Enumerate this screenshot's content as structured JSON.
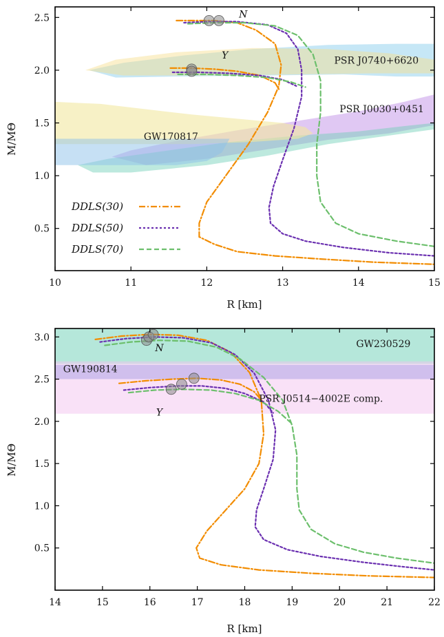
{
  "chart_data": [
    {
      "type": "line",
      "xlabel": "R [km]",
      "ylabel": "M/MΘ",
      "xlim": [
        10,
        15
      ],
      "ylim": [
        0.1,
        2.6
      ],
      "x_ticks": [
        10,
        11,
        12,
        13,
        14,
        15
      ],
      "y_ticks": [
        0.5,
        1.0,
        1.5,
        2.0,
        2.5
      ],
      "x_tick_labels": [
        "10",
        "11",
        "12",
        "13",
        "14",
        "15"
      ],
      "y_tick_labels": [
        "0.5",
        "1.0",
        "1.5",
        "2.0",
        "2.5"
      ],
      "legend": {
        "placement": "lower-left",
        "entries": [
          {
            "label": "DDLS(30)",
            "color": "#f28c00",
            "dash": "dashdot"
          },
          {
            "label": "DDLS(50)",
            "color": "#6a2fb0",
            "dash": "dotted"
          },
          {
            "label": "DDLS(70)",
            "color": "#6cbf6c",
            "dash": "dashed"
          }
        ]
      },
      "bands": [
        {
          "label": "PSR J0740+6620",
          "color": "#8ecfee",
          "opacity": 0.5,
          "polygon": [
            [
              10.45,
              2.0
            ],
            [
              10.9,
              2.07
            ],
            [
              11.7,
              2.14
            ],
            [
              12.6,
              2.2
            ],
            [
              13.6,
              2.24
            ],
            [
              14.5,
              2.25
            ],
            [
              15.0,
              2.25
            ],
            [
              15.0,
              1.94
            ],
            [
              14.5,
              1.94
            ],
            [
              13.8,
              1.96
            ],
            [
              12.8,
              1.95
            ],
            [
              11.6,
              1.94
            ],
            [
              10.8,
              1.93
            ]
          ]
        },
        {
          "label": "",
          "color": "#f6dd8c",
          "opacity": 0.45,
          "polygon": [
            [
              10.4,
              2.0
            ],
            [
              10.8,
              2.1
            ],
            [
              11.6,
              2.17
            ],
            [
              12.6,
              2.21
            ],
            [
              13.6,
              2.2
            ],
            [
              14.4,
              2.16
            ],
            [
              15.0,
              2.1
            ],
            [
              15.0,
              1.97
            ],
            [
              14.2,
              1.97
            ],
            [
              13.2,
              1.96
            ],
            [
              12.0,
              1.95
            ],
            [
              10.9,
              1.95
            ]
          ]
        },
        {
          "label": "PSR J0030+0451",
          "color": "#c69bea",
          "opacity": 0.55,
          "polygon": [
            [
              10.75,
              1.18
            ],
            [
              11.0,
              1.24
            ],
            [
              11.6,
              1.33
            ],
            [
              12.4,
              1.43
            ],
            [
              13.2,
              1.52
            ],
            [
              14.0,
              1.61
            ],
            [
              14.6,
              1.7
            ],
            [
              15.0,
              1.77
            ],
            [
              15.0,
              1.48
            ],
            [
              14.4,
              1.4
            ],
            [
              13.6,
              1.34
            ],
            [
              12.8,
              1.25
            ],
            [
              12.0,
              1.16
            ],
            [
              11.2,
              1.1
            ]
          ]
        },
        {
          "label": "",
          "color": "#6ccfb6",
          "opacity": 0.45,
          "polygon": [
            [
              10.3,
              1.1
            ],
            [
              10.7,
              1.16
            ],
            [
              11.5,
              1.24
            ],
            [
              12.3,
              1.32
            ],
            [
              13.2,
              1.38
            ],
            [
              14.0,
              1.42
            ],
            [
              14.6,
              1.47
            ],
            [
              15.0,
              1.5
            ],
            [
              15.0,
              1.44
            ],
            [
              14.4,
              1.38
            ],
            [
              13.6,
              1.3
            ],
            [
              12.8,
              1.19
            ],
            [
              12.0,
              1.1
            ],
            [
              11.0,
              1.03
            ],
            [
              10.5,
              1.03
            ]
          ]
        },
        {
          "label": "GW170817",
          "color": "#f2e8a0",
          "opacity": 0.6,
          "polygon": [
            [
              10.0,
              1.7
            ],
            [
              10.6,
              1.68
            ],
            [
              11.2,
              1.63
            ],
            [
              11.8,
              1.58
            ],
            [
              12.4,
              1.54
            ],
            [
              13.0,
              1.5
            ],
            [
              13.3,
              1.46
            ],
            [
              13.4,
              1.4
            ],
            [
              13.2,
              1.35
            ],
            [
              12.6,
              1.32
            ],
            [
              11.8,
              1.3
            ],
            [
              10.0,
              1.3
            ]
          ]
        },
        {
          "label": "",
          "color": "#8ec1ea",
          "opacity": 0.5,
          "polygon": [
            [
              10.0,
              1.35
            ],
            [
              12.3,
              1.35
            ],
            [
              12.2,
              1.22
            ],
            [
              12.0,
              1.14
            ],
            [
              11.6,
              1.1
            ],
            [
              10.0,
              1.1
            ]
          ]
        }
      ],
      "band_labels": [
        {
          "text": "PSR J0740+6620",
          "x": 13.68,
          "y": 2.06
        },
        {
          "text": "PSR J0030+0451",
          "x": 13.75,
          "y": 1.6
        },
        {
          "text": "GW170817",
          "x": 11.17,
          "y": 1.34
        }
      ],
      "branch_labels": [
        {
          "text": "N",
          "x": 12.48,
          "y": 2.5
        },
        {
          "text": "Y",
          "x": 12.24,
          "y": 2.11
        }
      ],
      "series": [
        {
          "name": "DDLS(30)",
          "color": "#f28c00",
          "dash": "dashdot",
          "x": [
            11.6,
            11.85,
            12.1,
            12.4,
            12.65,
            12.9,
            12.98,
            12.95,
            12.8,
            12.55,
            12.25,
            12.0,
            11.9,
            11.9,
            12.1,
            12.4,
            12.9,
            13.5,
            14.2,
            15.0
          ],
          "y": [
            2.47,
            2.47,
            2.47,
            2.45,
            2.38,
            2.25,
            2.05,
            1.85,
            1.6,
            1.3,
            1.0,
            0.75,
            0.55,
            0.42,
            0.35,
            0.28,
            0.24,
            0.21,
            0.18,
            0.16
          ]
        },
        {
          "name": "",
          "color": "#f28c00",
          "dash": "dashdot",
          "x": [
            11.52,
            11.8,
            12.1,
            12.4,
            12.7,
            12.9,
            12.95
          ],
          "y": [
            2.02,
            2.02,
            2.01,
            1.99,
            1.95,
            1.88,
            1.82
          ]
        },
        {
          "name": "DDLS(50)",
          "color": "#6a2fb0",
          "dash": "dotted",
          "x": [
            11.7,
            12.0,
            12.4,
            12.8,
            13.05,
            13.2,
            13.25,
            13.25,
            13.15,
            13.0,
            12.88,
            12.82,
            12.84,
            13.0,
            13.3,
            13.8,
            14.4,
            15.0
          ],
          "y": [
            2.45,
            2.46,
            2.46,
            2.43,
            2.35,
            2.2,
            2.0,
            1.75,
            1.45,
            1.15,
            0.9,
            0.7,
            0.55,
            0.45,
            0.38,
            0.32,
            0.27,
            0.24
          ]
        },
        {
          "name": "",
          "color": "#6a2fb0",
          "dash": "dotted",
          "x": [
            11.55,
            11.9,
            12.3,
            12.7,
            13.0,
            13.18
          ],
          "y": [
            1.98,
            1.98,
            1.97,
            1.95,
            1.91,
            1.85
          ]
        },
        {
          "name": "DDLS(70)",
          "color": "#6cbf6c",
          "dash": "dashed",
          "x": [
            11.75,
            12.1,
            12.5,
            12.9,
            13.2,
            13.4,
            13.5,
            13.5,
            13.45,
            13.45,
            13.5,
            13.7,
            14.0,
            14.5,
            15.0
          ],
          "y": [
            2.44,
            2.45,
            2.45,
            2.42,
            2.33,
            2.15,
            1.9,
            1.6,
            1.3,
            1.0,
            0.75,
            0.55,
            0.45,
            0.38,
            0.33
          ]
        },
        {
          "name": "",
          "color": "#6cbf6c",
          "dash": "dashed",
          "x": [
            11.62,
            12.0,
            12.4,
            12.8,
            13.1,
            13.3
          ],
          "y": [
            1.96,
            1.96,
            1.95,
            1.93,
            1.89,
            1.84
          ]
        }
      ],
      "markers": [
        {
          "x": 12.03,
          "y": 2.47
        },
        {
          "x": 12.16,
          "y": 2.47
        },
        {
          "x": 11.8,
          "y": 2.01
        },
        {
          "x": 11.8,
          "y": 1.99
        }
      ]
    },
    {
      "type": "line",
      "xlabel": "R [km]",
      "ylabel": "M/MΘ",
      "xlim": [
        14,
        22
      ],
      "ylim": [
        0.0,
        3.1
      ],
      "x_ticks": [
        14,
        15,
        16,
        17,
        18,
        19,
        20,
        21,
        22
      ],
      "y_ticks": [
        0.5,
        1.0,
        1.5,
        2.0,
        2.5,
        3.0
      ],
      "x_tick_labels": [
        "14",
        "15",
        "16",
        "17",
        "18",
        "19",
        "20",
        "21",
        "22"
      ],
      "y_tick_labels": [
        "0.5",
        "1.0",
        "1.5",
        "2.0",
        "2.5",
        "3.0"
      ],
      "bands": [
        {
          "label": "GW230529",
          "color": "#6ccfb6",
          "opacity": 0.5,
          "polygon": [
            [
              14.0,
              2.68
            ],
            [
              22.0,
              2.68
            ],
            [
              22.0,
              3.1
            ],
            [
              14.0,
              3.1
            ]
          ]
        },
        {
          "label": "GW190814",
          "color": "#7f95de",
          "opacity": 0.65,
          "polygon": [
            [
              14.0,
              2.5
            ],
            [
              22.0,
              2.5
            ],
            [
              22.0,
              2.67
            ],
            [
              14.0,
              2.67
            ]
          ]
        },
        {
          "label": "PSR J0514−4002E comp.",
          "color": "#f4c4ef",
          "opacity": 0.5,
          "polygon": [
            [
              14.0,
              2.09
            ],
            [
              22.0,
              2.09
            ],
            [
              22.0,
              2.71
            ],
            [
              14.0,
              2.71
            ]
          ]
        }
      ],
      "band_labels": [
        {
          "text": "GW230529",
          "x": 20.35,
          "y": 2.88
        },
        {
          "text": "GW190814",
          "x": 14.17,
          "y": 2.58
        },
        {
          "text": "PSR J0514−4002E comp.",
          "x": 18.3,
          "y": 2.23
        }
      ],
      "branch_labels": [
        {
          "text": "N",
          "x": 16.2,
          "y": 2.83
        },
        {
          "text": "Y",
          "x": 16.2,
          "y": 2.07
        }
      ],
      "series": [
        {
          "name": "DDLS(30)",
          "color": "#f28c00",
          "dash": "dashdot",
          "x": [
            14.85,
            15.4,
            16.0,
            16.6,
            17.2,
            17.7,
            18.1,
            18.35,
            18.4,
            18.3,
            18.0,
            17.6,
            17.2,
            16.98,
            17.05,
            17.5,
            18.3,
            19.4,
            20.6,
            22.0
          ],
          "y": [
            2.97,
            3.01,
            3.03,
            3.02,
            2.96,
            2.82,
            2.58,
            2.25,
            1.85,
            1.5,
            1.2,
            0.95,
            0.7,
            0.5,
            0.38,
            0.3,
            0.24,
            0.2,
            0.17,
            0.15
          ]
        },
        {
          "name": "",
          "color": "#f28c00",
          "dash": "dashdot",
          "x": [
            15.35,
            15.9,
            16.5,
            17.0,
            17.5,
            17.9,
            18.2,
            18.4
          ],
          "y": [
            2.45,
            2.48,
            2.5,
            2.51,
            2.49,
            2.44,
            2.35,
            2.22
          ]
        },
        {
          "name": "DDLS(50)",
          "color": "#6a2fb0",
          "dash": "dotted",
          "x": [
            14.95,
            15.5,
            16.1,
            16.7,
            17.3,
            17.8,
            18.2,
            18.5,
            18.65,
            18.6,
            18.4,
            18.25,
            18.22,
            18.4,
            18.9,
            19.6,
            20.5,
            21.3,
            22.0
          ],
          "y": [
            2.94,
            2.98,
            3.0,
            2.99,
            2.93,
            2.79,
            2.57,
            2.25,
            1.9,
            1.55,
            1.2,
            0.95,
            0.75,
            0.6,
            0.48,
            0.4,
            0.33,
            0.28,
            0.24
          ]
        },
        {
          "name": "",
          "color": "#6a2fb0",
          "dash": "dotted",
          "x": [
            15.45,
            16.0,
            16.6,
            17.1,
            17.6,
            18.0,
            18.4,
            18.6
          ],
          "y": [
            2.37,
            2.4,
            2.42,
            2.42,
            2.39,
            2.33,
            2.23,
            2.1
          ]
        },
        {
          "name": "DDLS(70)",
          "color": "#6cbf6c",
          "dash": "dashed",
          "x": [
            15.05,
            15.6,
            16.2,
            16.8,
            17.4,
            17.9,
            18.4,
            18.8,
            19.0,
            19.1,
            19.1,
            19.15,
            19.4,
            19.9,
            20.5,
            21.2,
            22.0
          ],
          "y": [
            2.9,
            2.94,
            2.96,
            2.95,
            2.88,
            2.74,
            2.52,
            2.25,
            1.95,
            1.6,
            1.2,
            0.95,
            0.72,
            0.55,
            0.45,
            0.38,
            0.32
          ]
        },
        {
          "name": "",
          "color": "#6cbf6c",
          "dash": "dashed",
          "x": [
            15.55,
            16.1,
            16.7,
            17.3,
            17.8,
            18.3,
            18.7,
            19.0
          ],
          "y": [
            2.34,
            2.37,
            2.38,
            2.37,
            2.33,
            2.25,
            2.12,
            1.97
          ]
        }
      ],
      "markers": [
        {
          "x": 15.93,
          "y": 2.96
        },
        {
          "x": 15.98,
          "y": 3.0
        },
        {
          "x": 16.07,
          "y": 3.03
        },
        {
          "x": 16.45,
          "y": 2.38
        },
        {
          "x": 16.67,
          "y": 2.44
        },
        {
          "x": 16.93,
          "y": 2.51
        }
      ]
    }
  ]
}
